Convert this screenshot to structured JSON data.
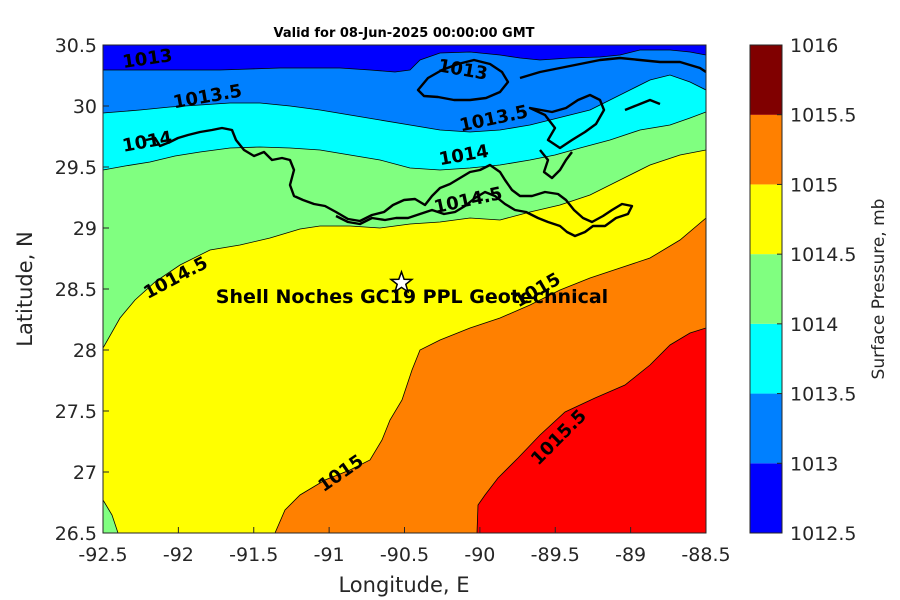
{
  "title": "Valid for 08-Jun-2025 00:00:00 GMT",
  "xlabel": "Longitude, E",
  "ylabel": "Latitude, N",
  "colorbar_label": "Surface Pressure, mb",
  "site_label": "Shell Noches   GC19 PPL  Geotechnical",
  "x_ticks": [
    "-92.5",
    "-92",
    "-91.5",
    "-91",
    "-90.5",
    "-90",
    "-89.5",
    "-89",
    "-88.5"
  ],
  "y_ticks": [
    "30.5",
    "30",
    "29.5",
    "29",
    "28.5",
    "28",
    "27.5",
    "27",
    "26.5"
  ],
  "colorbar_ticks": [
    "1016",
    "1015.5",
    "1015",
    "1014.5",
    "1014",
    "1013.5",
    "1013",
    "1012.5"
  ],
  "colors": {
    "band_1012_5": "#0000ff",
    "band_1013": "#0080ff",
    "band_1013_5": "#00ffff",
    "band_1014": "#80ff80",
    "band_1014_5": "#ffff00",
    "band_1015": "#ff8000",
    "band_1015_5": "#ff0000",
    "band_1016": "#800000"
  },
  "chart_data": {
    "type": "contour",
    "xlim": [
      -92.5,
      -88.5
    ],
    "ylim": [
      26.5,
      30.5
    ],
    "zlim": [
      1012.5,
      1016
    ],
    "levels": [
      1013,
      1013.5,
      1014,
      1014.5,
      1015,
      1015.5
    ],
    "contour_labels": [
      {
        "text": "1013",
        "lon": -92.2,
        "lat": 30.34
      },
      {
        "text": "1013",
        "lon": -90.12,
        "lat": 30.25
      },
      {
        "text": "1013.5",
        "lon": -91.8,
        "lat": 30.03
      },
      {
        "text": "1013.5",
        "lon": -89.9,
        "lat": 29.85
      },
      {
        "text": "1014",
        "lon": -92.2,
        "lat": 29.66
      },
      {
        "text": "1014",
        "lon": -90.1,
        "lat": 29.55
      },
      {
        "text": "1014.5",
        "lon": -90.07,
        "lat": 29.18
      },
      {
        "text": "1014.5",
        "lon": -92.0,
        "lat": 28.55
      },
      {
        "text": "1015",
        "lon": -89.6,
        "lat": 28.45
      },
      {
        "text": "1015",
        "lon": -90.9,
        "lat": 26.95
      },
      {
        "text": "1015.5",
        "lon": -89.45,
        "lat": 27.25
      }
    ],
    "site": {
      "lon": -90.52,
      "lat": 28.55
    },
    "colorbar_ticks": [
      1016,
      1015.5,
      1015,
      1014.5,
      1014,
      1013.5,
      1013,
      1012.5
    ],
    "legend_placement": "right"
  }
}
